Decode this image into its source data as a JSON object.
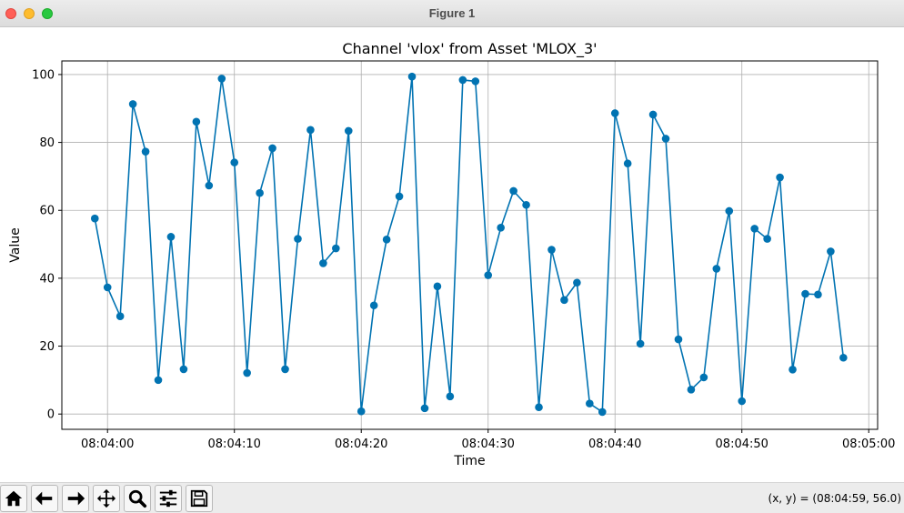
{
  "window": {
    "title": "Figure 1"
  },
  "toolbar": {
    "buttons": [
      {
        "icon": "home-icon"
      },
      {
        "icon": "back-arrow-icon"
      },
      {
        "icon": "forward-arrow-icon"
      },
      {
        "icon": "pan-move-icon"
      },
      {
        "icon": "zoom-magnifier-icon"
      },
      {
        "icon": "configure-subplots-icon"
      },
      {
        "icon": "save-floppy-icon"
      }
    ]
  },
  "status": {
    "coords": "(x, y) = (08:04:59, 56.0)"
  },
  "chart_data": {
    "type": "line",
    "title": "Channel 'vlox' from Asset 'MLOX_3'",
    "xlabel": "Time",
    "ylabel": "Value",
    "ylim": [
      -4.5,
      104
    ],
    "xlim": [
      "08:03:56.4",
      "08:05:00.7"
    ],
    "grid": true,
    "marker": "circle",
    "color": "#0173b2",
    "x_ticks": [
      "08:04:00",
      "08:04:10",
      "08:04:20",
      "08:04:30",
      "08:04:40",
      "08:04:50",
      "08:05:00"
    ],
    "y_ticks": [
      0,
      20,
      40,
      60,
      80,
      100
    ],
    "series": [
      {
        "x": [
          "08:03:59",
          "08:04:00",
          "08:04:01",
          "08:04:02",
          "08:04:03",
          "08:04:04",
          "08:04:05",
          "08:04:06",
          "08:04:07",
          "08:04:08",
          "08:04:09",
          "08:04:10",
          "08:04:11",
          "08:04:12",
          "08:04:13",
          "08:04:14",
          "08:04:15",
          "08:04:16",
          "08:04:17",
          "08:04:18",
          "08:04:19",
          "08:04:20",
          "08:04:21",
          "08:04:22",
          "08:04:23",
          "08:04:24",
          "08:04:25",
          "08:04:26",
          "08:04:27",
          "08:04:28",
          "08:04:29",
          "08:04:30",
          "08:04:31",
          "08:04:32",
          "08:04:33",
          "08:04:34",
          "08:04:35",
          "08:04:36",
          "08:04:37",
          "08:04:38",
          "08:04:39",
          "08:04:40",
          "08:04:41",
          "08:04:42",
          "08:04:43",
          "08:04:44",
          "08:04:45",
          "08:04:46",
          "08:04:47",
          "08:04:48",
          "08:04:49",
          "08:04:50",
          "08:04:51",
          "08:04:52",
          "08:04:53",
          "08:04:54",
          "08:04:55",
          "08:04:56",
          "08:04:57",
          "08:04:58"
        ],
        "y": [
          57.6,
          37.3,
          28.8,
          91.3,
          77.3,
          10.0,
          52.2,
          13.2,
          86.1,
          67.3,
          98.8,
          74.1,
          12.1,
          65.1,
          78.3,
          13.2,
          51.6,
          83.7,
          44.4,
          48.8,
          83.4,
          0.8,
          32.0,
          51.4,
          64.1,
          99.4,
          1.7,
          37.6,
          5.2,
          98.4,
          98.0,
          40.9,
          54.9,
          65.7,
          61.6,
          2.0,
          48.4,
          33.6,
          38.7,
          3.1,
          0.6,
          88.6,
          73.8,
          20.7,
          88.2,
          81.1,
          22.0,
          7.2,
          10.8,
          42.8,
          59.8,
          3.8,
          54.6,
          51.6,
          69.7,
          13.1,
          35.4,
          35.2,
          47.9,
          16.6
        ]
      }
    ]
  }
}
